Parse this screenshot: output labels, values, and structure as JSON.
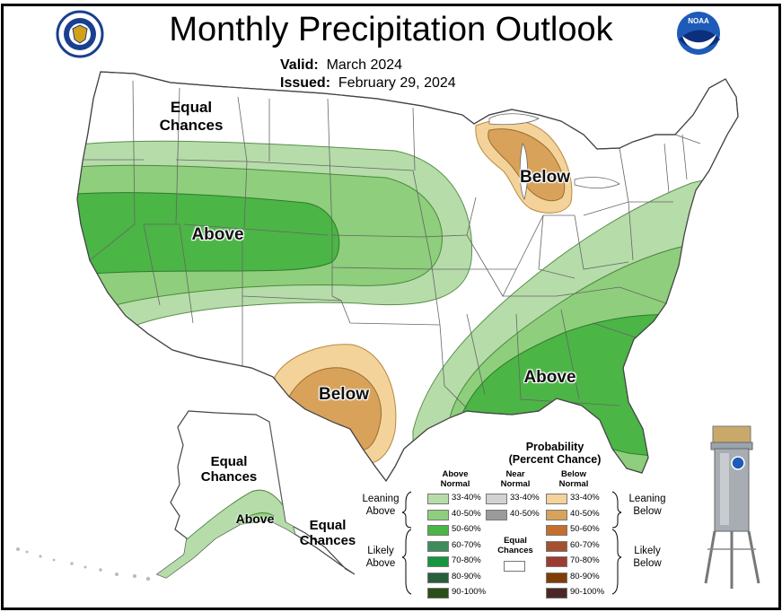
{
  "title": "Monthly Precipitation Outlook",
  "valid_label": "Valid:",
  "valid_value": "March 2024",
  "issued_label": "Issued:",
  "issued_value": "February 29, 2024",
  "map_labels": {
    "equal_chances_nw": "Equal Chances",
    "below_greatlakes": "Below",
    "above_west": "Above",
    "below_texas": "Below",
    "above_southeast": "Above",
    "equal_chances_alaska": "Equal Chances",
    "above_alaska": "Above",
    "equal_chances_alaska_s": "Equal Chances"
  },
  "logos": {
    "left": "commerce-seal",
    "right": "noaa-logo"
  },
  "legend": {
    "title_line1": "Probability",
    "title_line2": "(Percent Chance)",
    "col_above": "Above Normal",
    "col_near": "Near Normal",
    "col_below": "Below Normal",
    "leaning_above": "Leaning Above",
    "likely_above": "Likely Above",
    "leaning_below": "Leaning Below",
    "likely_below": "Likely Below",
    "equal_chances": "Equal Chances",
    "above": [
      {
        "range": "33-40%",
        "color": "#b6dcaa"
      },
      {
        "range": "40-50%",
        "color": "#8ece7c"
      },
      {
        "range": "50-60%",
        "color": "#4bb546"
      },
      {
        "range": "60-70%",
        "color": "#3e8c5c"
      },
      {
        "range": "70-80%",
        "color": "#13963e"
      },
      {
        "range": "80-90%",
        "color": "#285e3c"
      },
      {
        "range": "90-100%",
        "color": "#285018"
      }
    ],
    "near": [
      {
        "range": "33-40%",
        "color": "#d2d2d2"
      },
      {
        "range": "40-50%",
        "color": "#9b9b9b"
      }
    ],
    "below": [
      {
        "range": "33-40%",
        "color": "#f3d399"
      },
      {
        "range": "40-50%",
        "color": "#d8a25a"
      },
      {
        "range": "50-60%",
        "color": "#c66e2e"
      },
      {
        "range": "60-70%",
        "color": "#a5502e"
      },
      {
        "range": "70-80%",
        "color": "#9c3c32"
      },
      {
        "range": "80-90%",
        "color": "#7e3d05"
      },
      {
        "range": "90-100%",
        "color": "#4b2827"
      }
    ]
  }
}
